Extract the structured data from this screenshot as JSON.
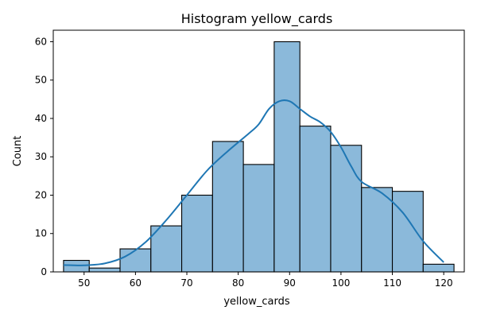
{
  "chart_data": {
    "type": "bar",
    "title": "Histogram yellow_cards",
    "xlabel": "yellow_cards",
    "ylabel": "Count",
    "xlim": [
      44,
      124
    ],
    "ylim": [
      0,
      63
    ],
    "xticks": [
      50,
      60,
      70,
      80,
      90,
      100,
      110,
      120
    ],
    "yticks": [
      0,
      10,
      20,
      30,
      40,
      50,
      60
    ],
    "bins": [
      {
        "x0": 46.0,
        "x1": 51.0,
        "count": 3
      },
      {
        "x0": 51.0,
        "x1": 57.0,
        "count": 1
      },
      {
        "x0": 57.0,
        "x1": 63.0,
        "count": 6
      },
      {
        "x0": 63.0,
        "x1": 69.0,
        "count": 12
      },
      {
        "x0": 69.0,
        "x1": 75.0,
        "count": 20
      },
      {
        "x0": 75.0,
        "x1": 81.0,
        "count": 34
      },
      {
        "x0": 81.0,
        "x1": 87.0,
        "count": 28
      },
      {
        "x0": 87.0,
        "x1": 92.0,
        "count": 60
      },
      {
        "x0": 92.0,
        "x1": 98.0,
        "count": 38
      },
      {
        "x0": 98.0,
        "x1": 104.0,
        "count": 33
      },
      {
        "x0": 104.0,
        "x1": 110.0,
        "count": 22
      },
      {
        "x0": 110.0,
        "x1": 116.0,
        "count": 21
      },
      {
        "x0": 116.0,
        "x1": 122.0,
        "count": 2
      }
    ],
    "kde": {
      "x": [
        46,
        50,
        54,
        58,
        62,
        66,
        70,
        74,
        78,
        82,
        84,
        86,
        88,
        90,
        92,
        94,
        96,
        98,
        100,
        102,
        104,
        108,
        112,
        116,
        120
      ],
      "y": [
        1.8,
        1.7,
        2.2,
        4.0,
        7.8,
        13.5,
        20.0,
        26.5,
        31.5,
        36.0,
        38.5,
        42.5,
        44.5,
        44.5,
        42.5,
        40.5,
        39.0,
        36.5,
        32.5,
        27.5,
        23.5,
        20.5,
        15.5,
        8.0,
        2.5
      ]
    },
    "grid": false,
    "colors": {
      "bar_fill": "#8bb9da",
      "bar_edge": "#000000",
      "kde_line": "#1f77b4"
    }
  }
}
